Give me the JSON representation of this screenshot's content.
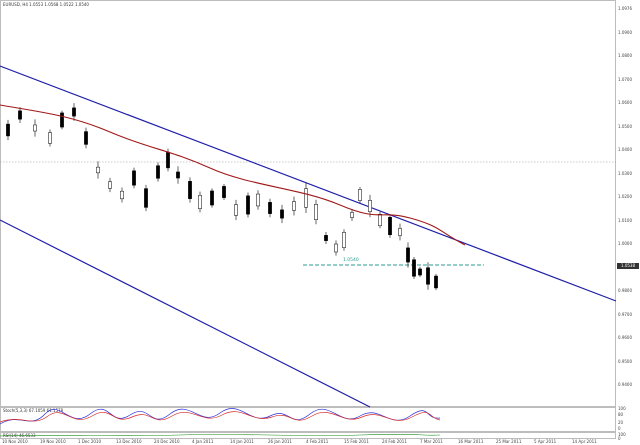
{
  "window": {
    "header": "EURUSD, H4  1.0553 1.0568 1.0522 1.0540",
    "current_price": "1.0538"
  },
  "price_axis": {
    "ticks": [
      "1.0976",
      "1.0900",
      "1.0800",
      "1.0700",
      "1.0600",
      "1.0500",
      "1.0400",
      "1.0300",
      "1.0200",
      "1.0100",
      "1.0000",
      "0.9900",
      "0.9800",
      "0.9700",
      "0.9600",
      "0.9500",
      "0.9400"
    ]
  },
  "time_axis": {
    "ticks": [
      "10 Nov 2010",
      "19 Nov 2010",
      "1 Dec 2010",
      "13 Dec 2010",
      "24 Dec 2010",
      "4 Jan 2011",
      "14 Jan 2011",
      "26 Jan 2011",
      "4 Feb 2011",
      "15 Feb 2011",
      "24 Feb 2011",
      "7 Mar 2011",
      "16 Mar 2011",
      "25 Mar 2011",
      "5 Apr 2011",
      "14 Apr 2011"
    ]
  },
  "level_label": "1.0540",
  "stochastic": {
    "header": "Stoch(5,3,3) 67.1059 61.1578",
    "ticks": [
      "100",
      "80",
      "20",
      "0"
    ]
  },
  "rsi": {
    "header": "RSI(14) 46.6533",
    "ticks": [
      "100",
      "0"
    ]
  },
  "colors": {
    "channel": "#1f1fa8",
    "ma": "#a01818",
    "level": "#2a9d8f",
    "candle": "#000000",
    "stoch_main": "#2b2bd6",
    "stoch_signal": "#d62b2b",
    "rsi": "#1a8a1a"
  }
}
